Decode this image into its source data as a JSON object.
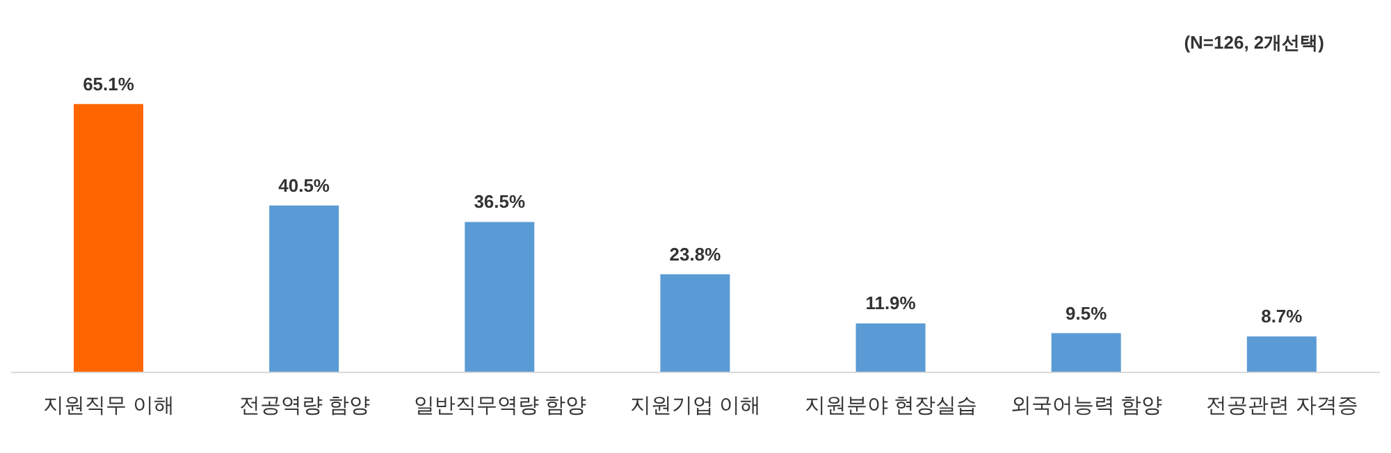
{
  "chart_data": {
    "type": "bar",
    "categories": [
      "지원직무 이해",
      "전공역량 함양",
      "일반직무역량 함양",
      "지원기업 이해",
      "지원분야 현장실습",
      "외국어능력 함양",
      "전공관련 자격증"
    ],
    "values": [
      65.1,
      40.5,
      36.5,
      23.8,
      11.9,
      9.5,
      8.7
    ],
    "colors": [
      "#ff6600",
      "#5b9bd5",
      "#5b9bd5",
      "#5b9bd5",
      "#5b9bd5",
      "#5b9bd5",
      "#5b9bd5"
    ],
    "value_labels": [
      "65.1%",
      "40.5%",
      "36.5%",
      "23.8%",
      "11.9%",
      "9.5%",
      "8.7%"
    ],
    "annotations": [
      "(N=126, 2개선택)"
    ]
  }
}
